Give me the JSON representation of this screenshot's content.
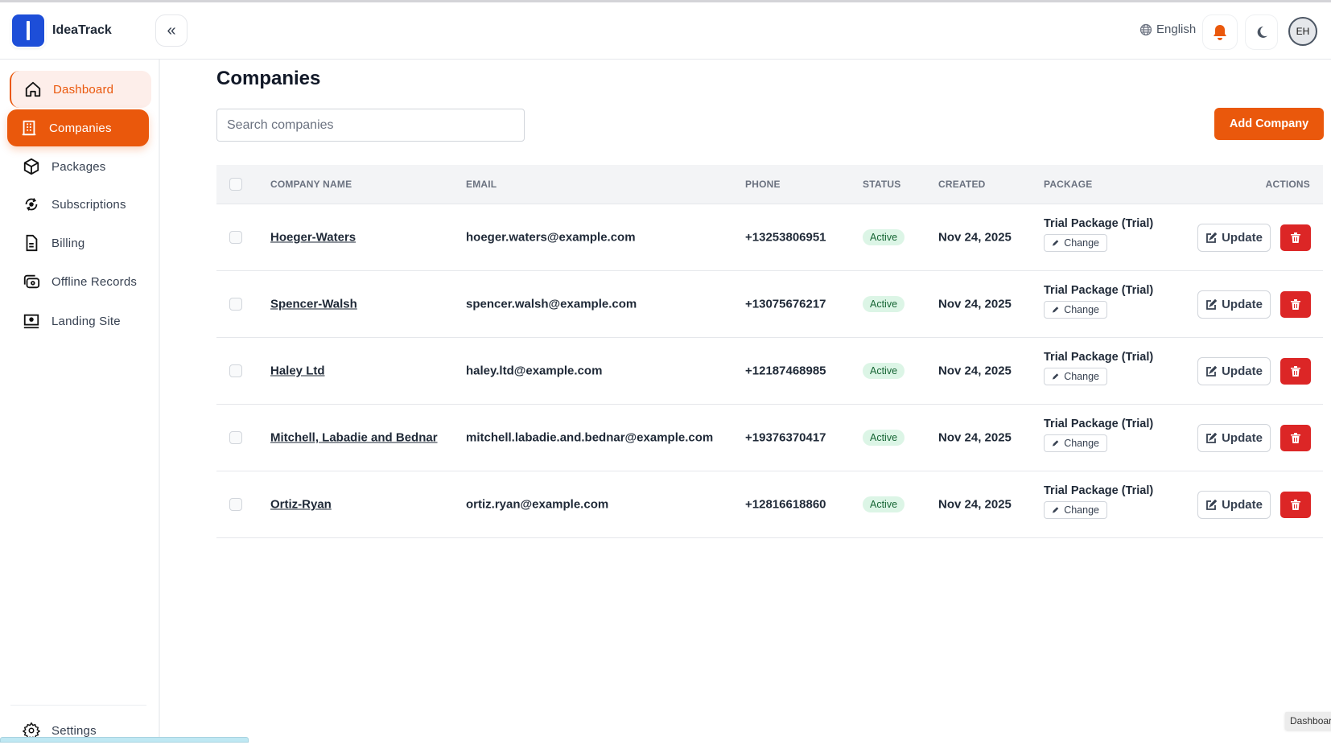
{
  "app": {
    "name": "IdeaTrack",
    "language": "English",
    "avatar_initials": "EH",
    "accent": "#ea580c"
  },
  "sidebar": {
    "items": [
      {
        "label": "Dashboard",
        "icon": "home-icon"
      },
      {
        "label": "Companies",
        "icon": "building-icon"
      },
      {
        "label": "Packages",
        "icon": "box-icon"
      },
      {
        "label": "Subscriptions",
        "icon": "subscription-icon"
      },
      {
        "label": "Billing",
        "icon": "document-icon"
      },
      {
        "label": "Offline Records",
        "icon": "cash-icon"
      },
      {
        "label": "Landing Site",
        "icon": "monitor-icon"
      }
    ],
    "settings": "Settings"
  },
  "page": {
    "title": "Companies",
    "search_placeholder": "Search companies",
    "add_label": "Add Company"
  },
  "table": {
    "headers": {
      "name": "COMPANY NAME",
      "email": "EMAIL",
      "phone": "PHONE",
      "status": "STATUS",
      "created": "CREATED",
      "package": "PACKAGE",
      "actions": "ACTIONS"
    },
    "change_label": "Change",
    "update_label": "Update",
    "rows": [
      {
        "name": "Hoeger-Waters",
        "email": "hoeger.waters@example.com",
        "phone": "+13253806951",
        "status": "Active",
        "created": "Nov 24, 2025",
        "package": "Trial Package (Trial)"
      },
      {
        "name": "Spencer-Walsh",
        "email": "spencer.walsh@example.com",
        "phone": "+13075676217",
        "status": "Active",
        "created": "Nov 24, 2025",
        "package": "Trial Package (Trial)"
      },
      {
        "name": "Haley Ltd",
        "email": "haley.ltd@example.com",
        "phone": "+12187468985",
        "status": "Active",
        "created": "Nov 24, 2025",
        "package": "Trial Package (Trial)"
      },
      {
        "name": "Mitchell, Labadie and Bednar",
        "email": "mitchell.labadie.and.bednar@example.com",
        "phone": "+19376370417",
        "status": "Active",
        "created": "Nov 24, 2025",
        "package": "Trial Package (Trial)"
      },
      {
        "name": "Ortiz-Ryan",
        "email": "ortiz.ryan@example.com",
        "phone": "+12816618860",
        "status": "Active",
        "created": "Nov 24, 2025",
        "package": "Trial Package (Trial)"
      }
    ]
  },
  "tooltip": "Dashboard"
}
